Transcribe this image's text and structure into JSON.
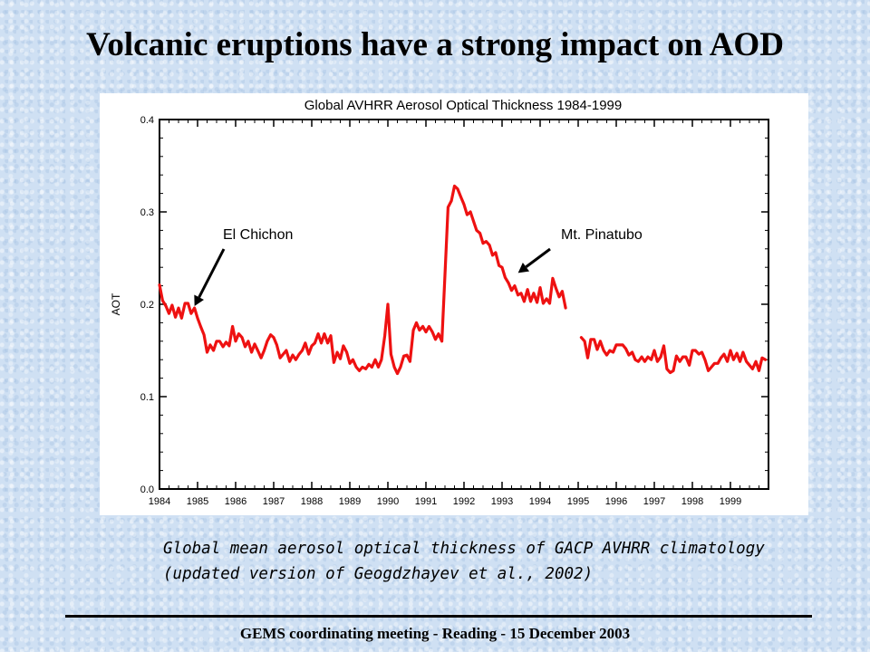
{
  "slide": {
    "title": "Volcanic eruptions have a strong impact on AOD",
    "caption_line1": "Global mean aerosol optical thickness of GACP AVHRR climatology",
    "caption_line2": "(updated version of Geogdzhayev et al., 2002)",
    "footer": "GEMS coordinating meeting - Reading - 15 December 2003"
  },
  "chart_data": {
    "type": "line",
    "title": "Global AVHRR Aerosol Optical Thickness 1984-1999",
    "xlabel": "",
    "ylabel": "AOT",
    "xlim": [
      1984,
      2000
    ],
    "ylim": [
      0.0,
      0.4
    ],
    "x_ticks": [
      "1984",
      "1985",
      "1986",
      "1987",
      "1988",
      "1989",
      "1990",
      "1991",
      "1992",
      "1993",
      "1994",
      "1995",
      "1996",
      "1997",
      "1998",
      "1999"
    ],
    "y_ticks": [
      "0.0",
      "0.1",
      "0.2",
      "0.3",
      "0.4"
    ],
    "line_color": "#ee1111",
    "grid": false,
    "series": [
      {
        "segments": [
          [
            [
              1984.0,
              0.221
            ],
            [
              1984.08,
              0.204
            ],
            [
              1984.17,
              0.198
            ],
            [
              1984.25,
              0.19
            ],
            [
              1984.33,
              0.199
            ],
            [
              1984.42,
              0.186
            ],
            [
              1984.5,
              0.196
            ],
            [
              1984.58,
              0.185
            ],
            [
              1984.67,
              0.201
            ],
            [
              1984.75,
              0.201
            ],
            [
              1984.83,
              0.19
            ],
            [
              1984.92,
              0.196
            ],
            [
              1985.0,
              0.185
            ],
            [
              1985.08,
              0.176
            ],
            [
              1985.17,
              0.167
            ],
            [
              1985.25,
              0.148
            ],
            [
              1985.33,
              0.156
            ],
            [
              1985.42,
              0.15
            ],
            [
              1985.5,
              0.16
            ],
            [
              1985.58,
              0.16
            ],
            [
              1985.67,
              0.154
            ],
            [
              1985.75,
              0.159
            ],
            [
              1985.83,
              0.155
            ],
            [
              1985.92,
              0.176
            ],
            [
              1986.0,
              0.16
            ],
            [
              1986.08,
              0.168
            ],
            [
              1986.17,
              0.164
            ],
            [
              1986.25,
              0.154
            ],
            [
              1986.33,
              0.16
            ],
            [
              1986.42,
              0.148
            ],
            [
              1986.5,
              0.157
            ],
            [
              1986.58,
              0.15
            ],
            [
              1986.67,
              0.142
            ],
            [
              1986.75,
              0.15
            ],
            [
              1986.83,
              0.16
            ],
            [
              1986.92,
              0.167
            ],
            [
              1987.0,
              0.164
            ],
            [
              1987.08,
              0.156
            ],
            [
              1987.17,
              0.142
            ],
            [
              1987.25,
              0.146
            ],
            [
              1987.33,
              0.15
            ],
            [
              1987.42,
              0.138
            ],
            [
              1987.5,
              0.145
            ],
            [
              1987.58,
              0.14
            ],
            [
              1987.67,
              0.146
            ],
            [
              1987.75,
              0.15
            ],
            [
              1987.83,
              0.158
            ],
            [
              1987.92,
              0.146
            ],
            [
              1988.0,
              0.155
            ],
            [
              1988.08,
              0.158
            ],
            [
              1988.17,
              0.168
            ],
            [
              1988.25,
              0.158
            ],
            [
              1988.33,
              0.168
            ],
            [
              1988.42,
              0.158
            ],
            [
              1988.5,
              0.166
            ],
            [
              1988.58,
              0.137
            ],
            [
              1988.67,
              0.148
            ],
            [
              1988.75,
              0.141
            ],
            [
              1988.83,
              0.155
            ],
            [
              1988.92,
              0.148
            ],
            [
              1989.0,
              0.136
            ],
            [
              1989.08,
              0.14
            ],
            [
              1989.17,
              0.132
            ],
            [
              1989.25,
              0.128
            ],
            [
              1989.33,
              0.132
            ],
            [
              1989.42,
              0.13
            ],
            [
              1989.5,
              0.135
            ],
            [
              1989.58,
              0.132
            ],
            [
              1989.67,
              0.14
            ],
            [
              1989.75,
              0.132
            ],
            [
              1989.83,
              0.14
            ],
            [
              1989.92,
              0.166
            ],
            [
              1990.0,
              0.2
            ],
            [
              1990.08,
              0.146
            ],
            [
              1990.17,
              0.132
            ],
            [
              1990.25,
              0.125
            ],
            [
              1990.33,
              0.132
            ],
            [
              1990.42,
              0.144
            ],
            [
              1990.5,
              0.145
            ],
            [
              1990.58,
              0.138
            ],
            [
              1990.67,
              0.172
            ],
            [
              1990.75,
              0.18
            ],
            [
              1990.83,
              0.172
            ],
            [
              1990.92,
              0.176
            ],
            [
              1991.0,
              0.17
            ],
            [
              1991.08,
              0.176
            ],
            [
              1991.17,
              0.17
            ],
            [
              1991.25,
              0.162
            ],
            [
              1991.33,
              0.168
            ],
            [
              1991.42,
              0.16
            ],
            [
              1991.5,
              0.232
            ],
            [
              1991.58,
              0.305
            ],
            [
              1991.67,
              0.312
            ],
            [
              1991.75,
              0.328
            ],
            [
              1991.83,
              0.325
            ],
            [
              1991.92,
              0.316
            ],
            [
              1992.0,
              0.308
            ],
            [
              1992.08,
              0.297
            ],
            [
              1992.17,
              0.3
            ],
            [
              1992.25,
              0.29
            ],
            [
              1992.33,
              0.28
            ],
            [
              1992.42,
              0.277
            ],
            [
              1992.5,
              0.266
            ],
            [
              1992.58,
              0.268
            ],
            [
              1992.67,
              0.264
            ],
            [
              1992.75,
              0.253
            ],
            [
              1992.83,
              0.256
            ],
            [
              1992.92,
              0.242
            ],
            [
              1993.0,
              0.24
            ],
            [
              1993.08,
              0.229
            ],
            [
              1993.17,
              0.223
            ],
            [
              1993.25,
              0.215
            ],
            [
              1993.33,
              0.22
            ],
            [
              1993.42,
              0.21
            ],
            [
              1993.5,
              0.212
            ],
            [
              1993.58,
              0.203
            ],
            [
              1993.67,
              0.216
            ],
            [
              1993.75,
              0.203
            ],
            [
              1993.83,
              0.212
            ],
            [
              1993.92,
              0.202
            ],
            [
              1994.0,
              0.218
            ],
            [
              1994.08,
              0.201
            ],
            [
              1994.17,
              0.206
            ],
            [
              1994.25,
              0.201
            ],
            [
              1994.33,
              0.228
            ],
            [
              1994.42,
              0.217
            ],
            [
              1994.5,
              0.208
            ],
            [
              1994.58,
              0.214
            ],
            [
              1994.67,
              0.196
            ]
          ],
          [
            [
              1995.08,
              0.164
            ],
            [
              1995.17,
              0.16
            ],
            [
              1995.25,
              0.142
            ],
            [
              1995.33,
              0.162
            ],
            [
              1995.42,
              0.162
            ],
            [
              1995.5,
              0.151
            ],
            [
              1995.58,
              0.16
            ],
            [
              1995.67,
              0.15
            ],
            [
              1995.75,
              0.145
            ],
            [
              1995.83,
              0.15
            ],
            [
              1995.92,
              0.148
            ],
            [
              1996.0,
              0.156
            ],
            [
              1996.08,
              0.156
            ],
            [
              1996.17,
              0.156
            ],
            [
              1996.25,
              0.152
            ],
            [
              1996.33,
              0.145
            ],
            [
              1996.42,
              0.148
            ],
            [
              1996.5,
              0.14
            ],
            [
              1996.58,
              0.138
            ],
            [
              1996.67,
              0.143
            ],
            [
              1996.75,
              0.138
            ],
            [
              1996.83,
              0.143
            ],
            [
              1996.92,
              0.14
            ],
            [
              1997.0,
              0.15
            ],
            [
              1997.08,
              0.138
            ],
            [
              1997.17,
              0.143
            ],
            [
              1997.25,
              0.155
            ],
            [
              1997.33,
              0.13
            ],
            [
              1997.42,
              0.126
            ],
            [
              1997.5,
              0.128
            ],
            [
              1997.58,
              0.144
            ],
            [
              1997.67,
              0.138
            ],
            [
              1997.75,
              0.143
            ],
            [
              1997.83,
              0.143
            ],
            [
              1997.92,
              0.134
            ],
            [
              1998.0,
              0.15
            ],
            [
              1998.08,
              0.15
            ],
            [
              1998.17,
              0.146
            ],
            [
              1998.25,
              0.148
            ],
            [
              1998.33,
              0.14
            ],
            [
              1998.42,
              0.128
            ],
            [
              1998.5,
              0.132
            ],
            [
              1998.58,
              0.136
            ],
            [
              1998.67,
              0.136
            ],
            [
              1998.75,
              0.142
            ],
            [
              1998.83,
              0.146
            ],
            [
              1998.92,
              0.138
            ],
            [
              1999.0,
              0.15
            ],
            [
              1999.08,
              0.14
            ],
            [
              1999.17,
              0.147
            ],
            [
              1999.25,
              0.138
            ],
            [
              1999.33,
              0.148
            ],
            [
              1999.42,
              0.138
            ],
            [
              1999.5,
              0.134
            ],
            [
              1999.58,
              0.13
            ],
            [
              1999.67,
              0.138
            ],
            [
              1999.75,
              0.128
            ],
            [
              1999.83,
              0.142
            ],
            [
              1999.92,
              0.14
            ]
          ]
        ]
      }
    ],
    "annotations": [
      {
        "text": "El Chichon",
        "points_to": [
          1984.92,
          0.198
        ]
      },
      {
        "text": "Mt. Pinatubo",
        "points_to": [
          1993.42,
          0.234
        ]
      }
    ]
  }
}
